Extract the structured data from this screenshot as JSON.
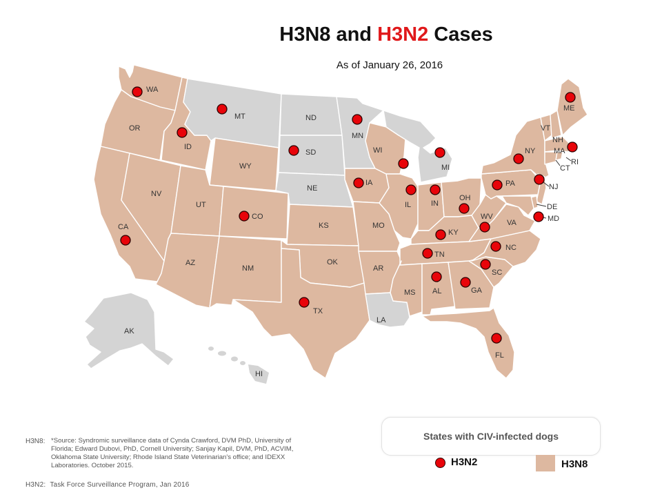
{
  "title": {
    "part1": "H3N8 and ",
    "part2": "H3N2",
    "part3": " Cases"
  },
  "subtitle": "As of January 26, 2016",
  "colors": {
    "h3n8_fill": "#ddb8a0",
    "no_case_fill": "#d4d4d4",
    "h3n2_dot": "#e8040a",
    "title_accent": "#e0191b"
  },
  "states": {
    "WA": "WA",
    "OR": "OR",
    "CA": "CA",
    "ID": "ID",
    "NV": "NV",
    "MT": "MT",
    "WY": "WY",
    "UT": "UT",
    "AZ": "AZ",
    "CO": "CO",
    "NM": "NM",
    "ND": "ND",
    "SD": "SD",
    "NE": "NE",
    "KS": "KS",
    "OK": "OK",
    "TX": "TX",
    "MN": "MN",
    "IA": "IA",
    "MO": "MO",
    "AR": "AR",
    "LA": "LA",
    "WI": "WI",
    "IL": "IL",
    "MI": "MI",
    "IN": "IN",
    "OH": "OH",
    "KY": "KY",
    "TN": "TN",
    "MS": "MS",
    "AL": "AL",
    "GA": "GA",
    "FL": "FL",
    "SC": "SC",
    "NC": "NC",
    "VA": "VA",
    "WV": "WV",
    "PA": "PA",
    "NY": "NY",
    "VT": "VT",
    "NH": "NH",
    "ME": "ME",
    "MA": "MA",
    "RI": "RI",
    "CT": "CT",
    "NJ": "NJ",
    "DE": "DE",
    "MD": "MD",
    "AK": "AK",
    "HI": "HI"
  },
  "h3n8_states": [
    "WA",
    "OR",
    "CA",
    "ID",
    "NV",
    "WY",
    "UT",
    "AZ",
    "CO",
    "NM",
    "KS",
    "OK",
    "TX",
    "IA",
    "MO",
    "AR",
    "WI",
    "IL",
    "IN",
    "OH",
    "KY",
    "TN",
    "MS",
    "AL",
    "GA",
    "FL",
    "SC",
    "NC",
    "VA",
    "WV",
    "PA",
    "NY",
    "VT",
    "NH",
    "ME",
    "MA",
    "RI",
    "CT",
    "NJ",
    "DE",
    "MD"
  ],
  "no_case_states": [
    "MT",
    "ND",
    "SD",
    "NE",
    "MN",
    "MI",
    "LA",
    "AK",
    "HI"
  ],
  "h3n2_states": [
    "WA",
    "ID",
    "MT",
    "MN",
    "SD",
    "WI",
    "MI",
    "IA",
    "IL",
    "IN",
    "CO",
    "CA",
    "TX",
    "OH",
    "KY",
    "WV",
    "TN",
    "NC",
    "SC",
    "AL",
    "GA",
    "FL",
    "PA",
    "NY",
    "NJ",
    "MD",
    "MA",
    "ME"
  ],
  "legend": {
    "title": "States with CIV-infected dogs",
    "h3n2_label": "H3N2",
    "h3n8_label": "H3N8"
  },
  "sources": {
    "h3n8_tag": "H3N8:",
    "h3n8_text": "*Source: Syndromic surveillance data of Cynda Crawford, DVM PhD, University of Florida; Edward Dubovi, PhD, Cornell University; Sanjay Kapil, DVM, PhD, ACVIM, Oklahoma State University; Rhode Island State Veterinarian's office; and IDEXX Laboratories. October 2015.",
    "h3n2_tag": "H3N2:",
    "h3n2_text": "Task Force Surveillance Program, Jan 2016"
  }
}
